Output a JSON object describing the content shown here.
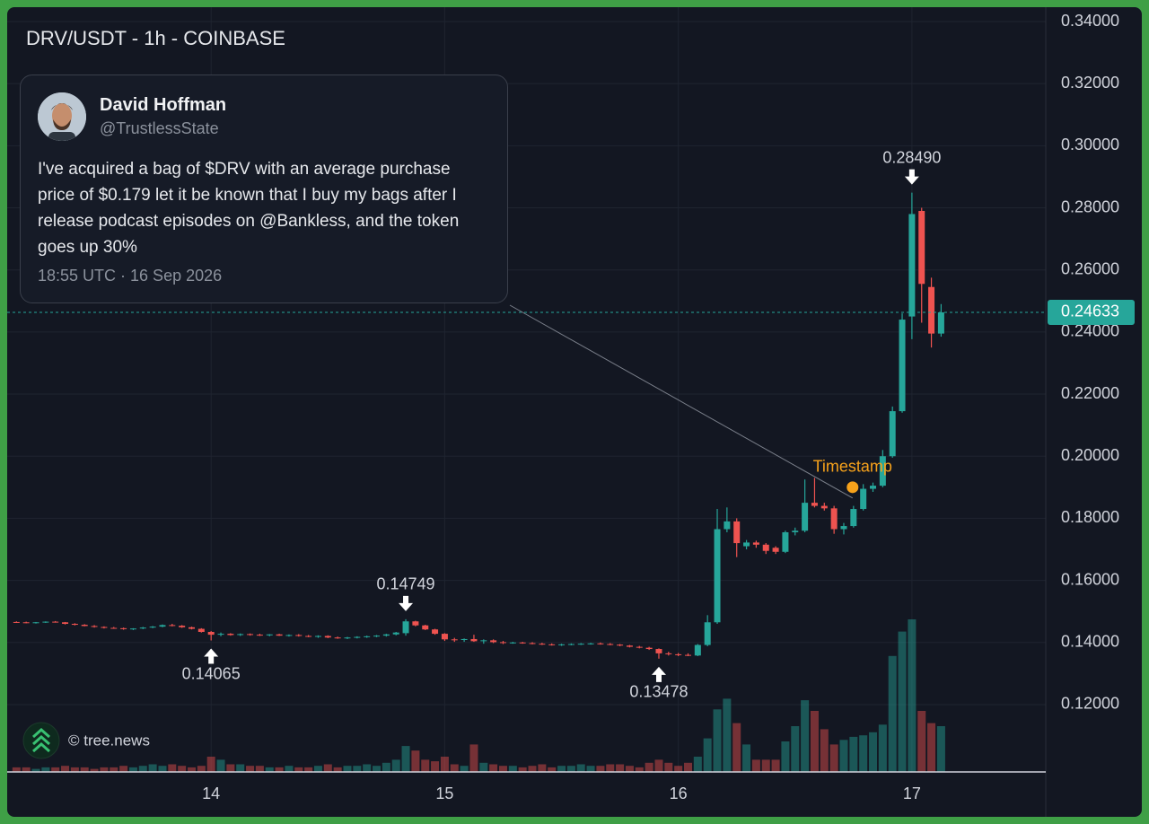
{
  "chart_data": {
    "type": "candlestick",
    "title": "DRV/USDT - 1h - COINBASE",
    "watermark": "© tree.news",
    "up_color": "#26a69a",
    "down_color": "#ef5350",
    "grid": true,
    "xlim": [
      13.127,
      17.573
    ],
    "xticks": [
      14,
      15,
      16,
      17
    ],
    "ylim": [
      0.0983,
      0.34
    ],
    "yticks": [
      {
        "value": 0.12,
        "label": "0.12000"
      },
      {
        "value": 0.14,
        "label": "0.14000"
      },
      {
        "value": 0.16,
        "label": "0.16000"
      },
      {
        "value": 0.18,
        "label": "0.18000"
      },
      {
        "value": 0.2,
        "label": "0.20000"
      },
      {
        "value": 0.22,
        "label": "0.22000"
      },
      {
        "value": 0.24,
        "label": "0.24000"
      },
      {
        "value": 0.26,
        "label": "0.26000"
      },
      {
        "value": 0.28,
        "label": "0.28000"
      },
      {
        "value": 0.3,
        "label": "0.30000"
      },
      {
        "value": 0.32,
        "label": "0.32000"
      },
      {
        "value": 0.34,
        "label": "0.34000"
      }
    ],
    "volume_ylim": [
      0,
      100
    ],
    "x": [
      13.1667,
      13.2083,
      13.25,
      13.2917,
      13.3333,
      13.375,
      13.4167,
      13.4583,
      13.5,
      13.5417,
      13.5833,
      13.625,
      13.6667,
      13.7083,
      13.75,
      13.7917,
      13.8333,
      13.875,
      13.9167,
      13.9583,
      14,
      14.0417,
      14.0833,
      14.125,
      14.1667,
      14.2083,
      14.25,
      14.2917,
      14.3333,
      14.375,
      14.4167,
      14.4583,
      14.5,
      14.5417,
      14.5833,
      14.625,
      14.6667,
      14.7083,
      14.75,
      14.7917,
      14.8333,
      14.875,
      14.9167,
      14.9583,
      15,
      15.0417,
      15.0833,
      15.125,
      15.1667,
      15.2083,
      15.25,
      15.2917,
      15.3333,
      15.375,
      15.4167,
      15.4583,
      15.5,
      15.5417,
      15.5833,
      15.625,
      15.6667,
      15.7083,
      15.75,
      15.7917,
      15.8333,
      15.875,
      15.9167,
      15.9583,
      16,
      16.0417,
      16.0833,
      16.125,
      16.1667,
      16.2083,
      16.25,
      16.2917,
      16.3333,
      16.375,
      16.4167,
      16.4583,
      16.5,
      16.5417,
      16.5833,
      16.625,
      16.6667,
      16.7083,
      16.75,
      16.7917,
      16.8333,
      16.875,
      16.9167,
      16.9583,
      17,
      17.0417,
      17.0833,
      17.125
    ],
    "open": [
      0.1466,
      0.1465,
      0.1464,
      0.1465,
      0.1467,
      0.1465,
      0.146,
      0.1457,
      0.1453,
      0.145,
      0.1447,
      0.1446,
      0.1443,
      0.1445,
      0.1448,
      0.1451,
      0.1456,
      0.1454,
      0.1449,
      0.1444,
      0.1434,
      0.1425,
      0.1428,
      0.1424,
      0.1427,
      0.1425,
      0.1423,
      0.1426,
      0.1422,
      0.1424,
      0.1421,
      0.1419,
      0.1421,
      0.1416,
      0.1414,
      0.1416,
      0.1418,
      0.142,
      0.1422,
      0.1426,
      0.143,
      0.1468,
      0.1455,
      0.1442,
      0.1428,
      0.141,
      0.1408,
      0.1411,
      0.1404,
      0.1407,
      0.1401,
      0.1399,
      0.14,
      0.1398,
      0.1396,
      0.1394,
      0.1392,
      0.1394,
      0.1395,
      0.1396,
      0.1397,
      0.1395,
      0.1393,
      0.139,
      0.1386,
      0.1383,
      0.1379,
      0.1365,
      0.1362,
      0.136,
      0.1358,
      0.1392,
      0.1465,
      0.1765,
      0.179,
      0.171,
      0.1722,
      0.1715,
      0.1705,
      0.1692,
      0.1755,
      0.176,
      0.185,
      0.184,
      0.1832,
      0.1765,
      0.1775,
      0.183,
      0.1895,
      0.1905,
      0.2,
      0.2145,
      0.245,
      0.279,
      0.2545,
      0.2395
    ],
    "high": [
      0.1468,
      0.1467,
      0.1466,
      0.1468,
      0.1469,
      0.1466,
      0.1462,
      0.1459,
      0.1456,
      0.1452,
      0.145,
      0.1448,
      0.1446,
      0.145,
      0.1453,
      0.1458,
      0.146,
      0.1456,
      0.1451,
      0.1446,
      0.1437,
      0.1432,
      0.143,
      0.1429,
      0.1429,
      0.1428,
      0.1427,
      0.1428,
      0.1426,
      0.1427,
      0.1424,
      0.1423,
      0.1423,
      0.1419,
      0.1418,
      0.142,
      0.1422,
      0.1424,
      0.1428,
      0.1434,
      0.14749,
      0.147,
      0.1457,
      0.1444,
      0.143,
      0.1415,
      0.1413,
      0.1425,
      0.141,
      0.141,
      0.1405,
      0.1402,
      0.1402,
      0.1401,
      0.1399,
      0.1397,
      0.1396,
      0.1397,
      0.1398,
      0.1399,
      0.14,
      0.1398,
      0.1395,
      0.1392,
      0.1389,
      0.1386,
      0.1381,
      0.137,
      0.1366,
      0.1365,
      0.1395,
      0.1488,
      0.183,
      0.1835,
      0.18,
      0.173,
      0.1728,
      0.172,
      0.171,
      0.176,
      0.177,
      0.1925,
      0.193,
      0.185,
      0.184,
      0.1785,
      0.184,
      0.191,
      0.1915,
      0.202,
      0.216,
      0.246,
      0.2849,
      0.28,
      0.2575,
      0.249
    ],
    "low": [
      0.1463,
      0.1462,
      0.1461,
      0.1463,
      0.1464,
      0.1458,
      0.1455,
      0.1452,
      0.1448,
      0.1445,
      0.1444,
      0.1441,
      0.144,
      0.1443,
      0.1446,
      0.1449,
      0.1452,
      0.1447,
      0.1442,
      0.1432,
      0.14065,
      0.142,
      0.1422,
      0.1421,
      0.1422,
      0.1421,
      0.142,
      0.1421,
      0.1419,
      0.1419,
      0.1417,
      0.1415,
      0.1414,
      0.1412,
      0.1411,
      0.1413,
      0.1415,
      0.1417,
      0.1419,
      0.1423,
      0.1422,
      0.1452,
      0.144,
      0.1425,
      0.1405,
      0.1402,
      0.1402,
      0.1402,
      0.1396,
      0.1398,
      0.1395,
      0.1396,
      0.1396,
      0.1394,
      0.1392,
      0.139,
      0.1389,
      0.1391,
      0.1392,
      0.1393,
      0.1393,
      0.1391,
      0.1388,
      0.1384,
      0.1381,
      0.1376,
      0.13478,
      0.1358,
      0.1356,
      0.1356,
      0.1356,
      0.1388,
      0.146,
      0.1755,
      0.1675,
      0.17,
      0.1705,
      0.1685,
      0.1685,
      0.1688,
      0.1745,
      0.1755,
      0.1835,
      0.1825,
      0.175,
      0.1748,
      0.177,
      0.1825,
      0.1885,
      0.19,
      0.1995,
      0.214,
      0.2377,
      0.243,
      0.235,
      0.2385
    ],
    "close": [
      0.1465,
      0.1464,
      0.1465,
      0.1467,
      0.1465,
      0.146,
      0.1457,
      0.1453,
      0.145,
      0.1447,
      0.1446,
      0.1443,
      0.1445,
      0.1448,
      0.1451,
      0.1456,
      0.1454,
      0.1449,
      0.1444,
      0.1434,
      0.1425,
      0.1428,
      0.1424,
      0.1427,
      0.1425,
      0.1423,
      0.1426,
      0.1422,
      0.1424,
      0.1421,
      0.1419,
      0.1421,
      0.1416,
      0.1414,
      0.1416,
      0.1418,
      0.142,
      0.1422,
      0.1426,
      0.1432,
      0.1468,
      0.1455,
      0.1442,
      0.1428,
      0.141,
      0.1408,
      0.1411,
      0.1404,
      0.1407,
      0.1401,
      0.1399,
      0.14,
      0.1398,
      0.1396,
      0.1394,
      0.1392,
      0.1394,
      0.1395,
      0.1396,
      0.1397,
      0.1395,
      0.1393,
      0.139,
      0.1386,
      0.1383,
      0.1379,
      0.1365,
      0.1362,
      0.136,
      0.1358,
      0.1392,
      0.1465,
      0.1765,
      0.179,
      0.172,
      0.1722,
      0.1715,
      0.1695,
      0.1692,
      0.1755,
      0.176,
      0.185,
      0.184,
      0.1832,
      0.1765,
      0.1775,
      0.183,
      0.1895,
      0.1905,
      0.2,
      0.2145,
      0.244,
      0.278,
      0.2555,
      0.2395,
      0.24633
    ],
    "volume": [
      3,
      3,
      2,
      3,
      3,
      4,
      3,
      3,
      2,
      3,
      3,
      4,
      3,
      4,
      5,
      4,
      5,
      4,
      3,
      4,
      10,
      8,
      5,
      5,
      4,
      4,
      3,
      3,
      4,
      3,
      3,
      4,
      5,
      3,
      4,
      4,
      5,
      4,
      6,
      8,
      17,
      14,
      8,
      7,
      10,
      5,
      4,
      18,
      6,
      5,
      4,
      4,
      3,
      4,
      5,
      3,
      4,
      4,
      5,
      4,
      4,
      5,
      5,
      4,
      3,
      6,
      8,
      6,
      4,
      6,
      10,
      22,
      41,
      48,
      32,
      18,
      8,
      8,
      8,
      20,
      30,
      47,
      40,
      28,
      18,
      21,
      23,
      24,
      26,
      31,
      76,
      92,
      100,
      40,
      32,
      30
    ],
    "annotations": [
      {
        "x": 17,
        "value": 0.2849,
        "label": "0.28490",
        "position": "above"
      },
      {
        "x": 14.8333,
        "value": 0.14749,
        "label": "0.14749",
        "position": "above"
      },
      {
        "x": 14,
        "value": 0.14065,
        "label": "0.14065",
        "position": "below"
      },
      {
        "x": 15.9167,
        "value": 0.13478,
        "label": "0.13478",
        "position": "below"
      }
    ],
    "current_price": {
      "value": 0.24633,
      "label": "0.24633"
    },
    "timestamp_marker": {
      "x": 16.746,
      "y": 0.19,
      "label": "Timestamp",
      "color": "#f7a21b"
    }
  },
  "tweet": {
    "name": "David Hoffman",
    "handle": "@TrustlessState",
    "text": "I've acquired a bag of $DRV with an average purchase price of $0.179 let it be known that I buy my bags after I release podcast episodes on @Bankless, and the token goes up 30%",
    "time": "18:55 UTC · 16 Sep 2026"
  }
}
